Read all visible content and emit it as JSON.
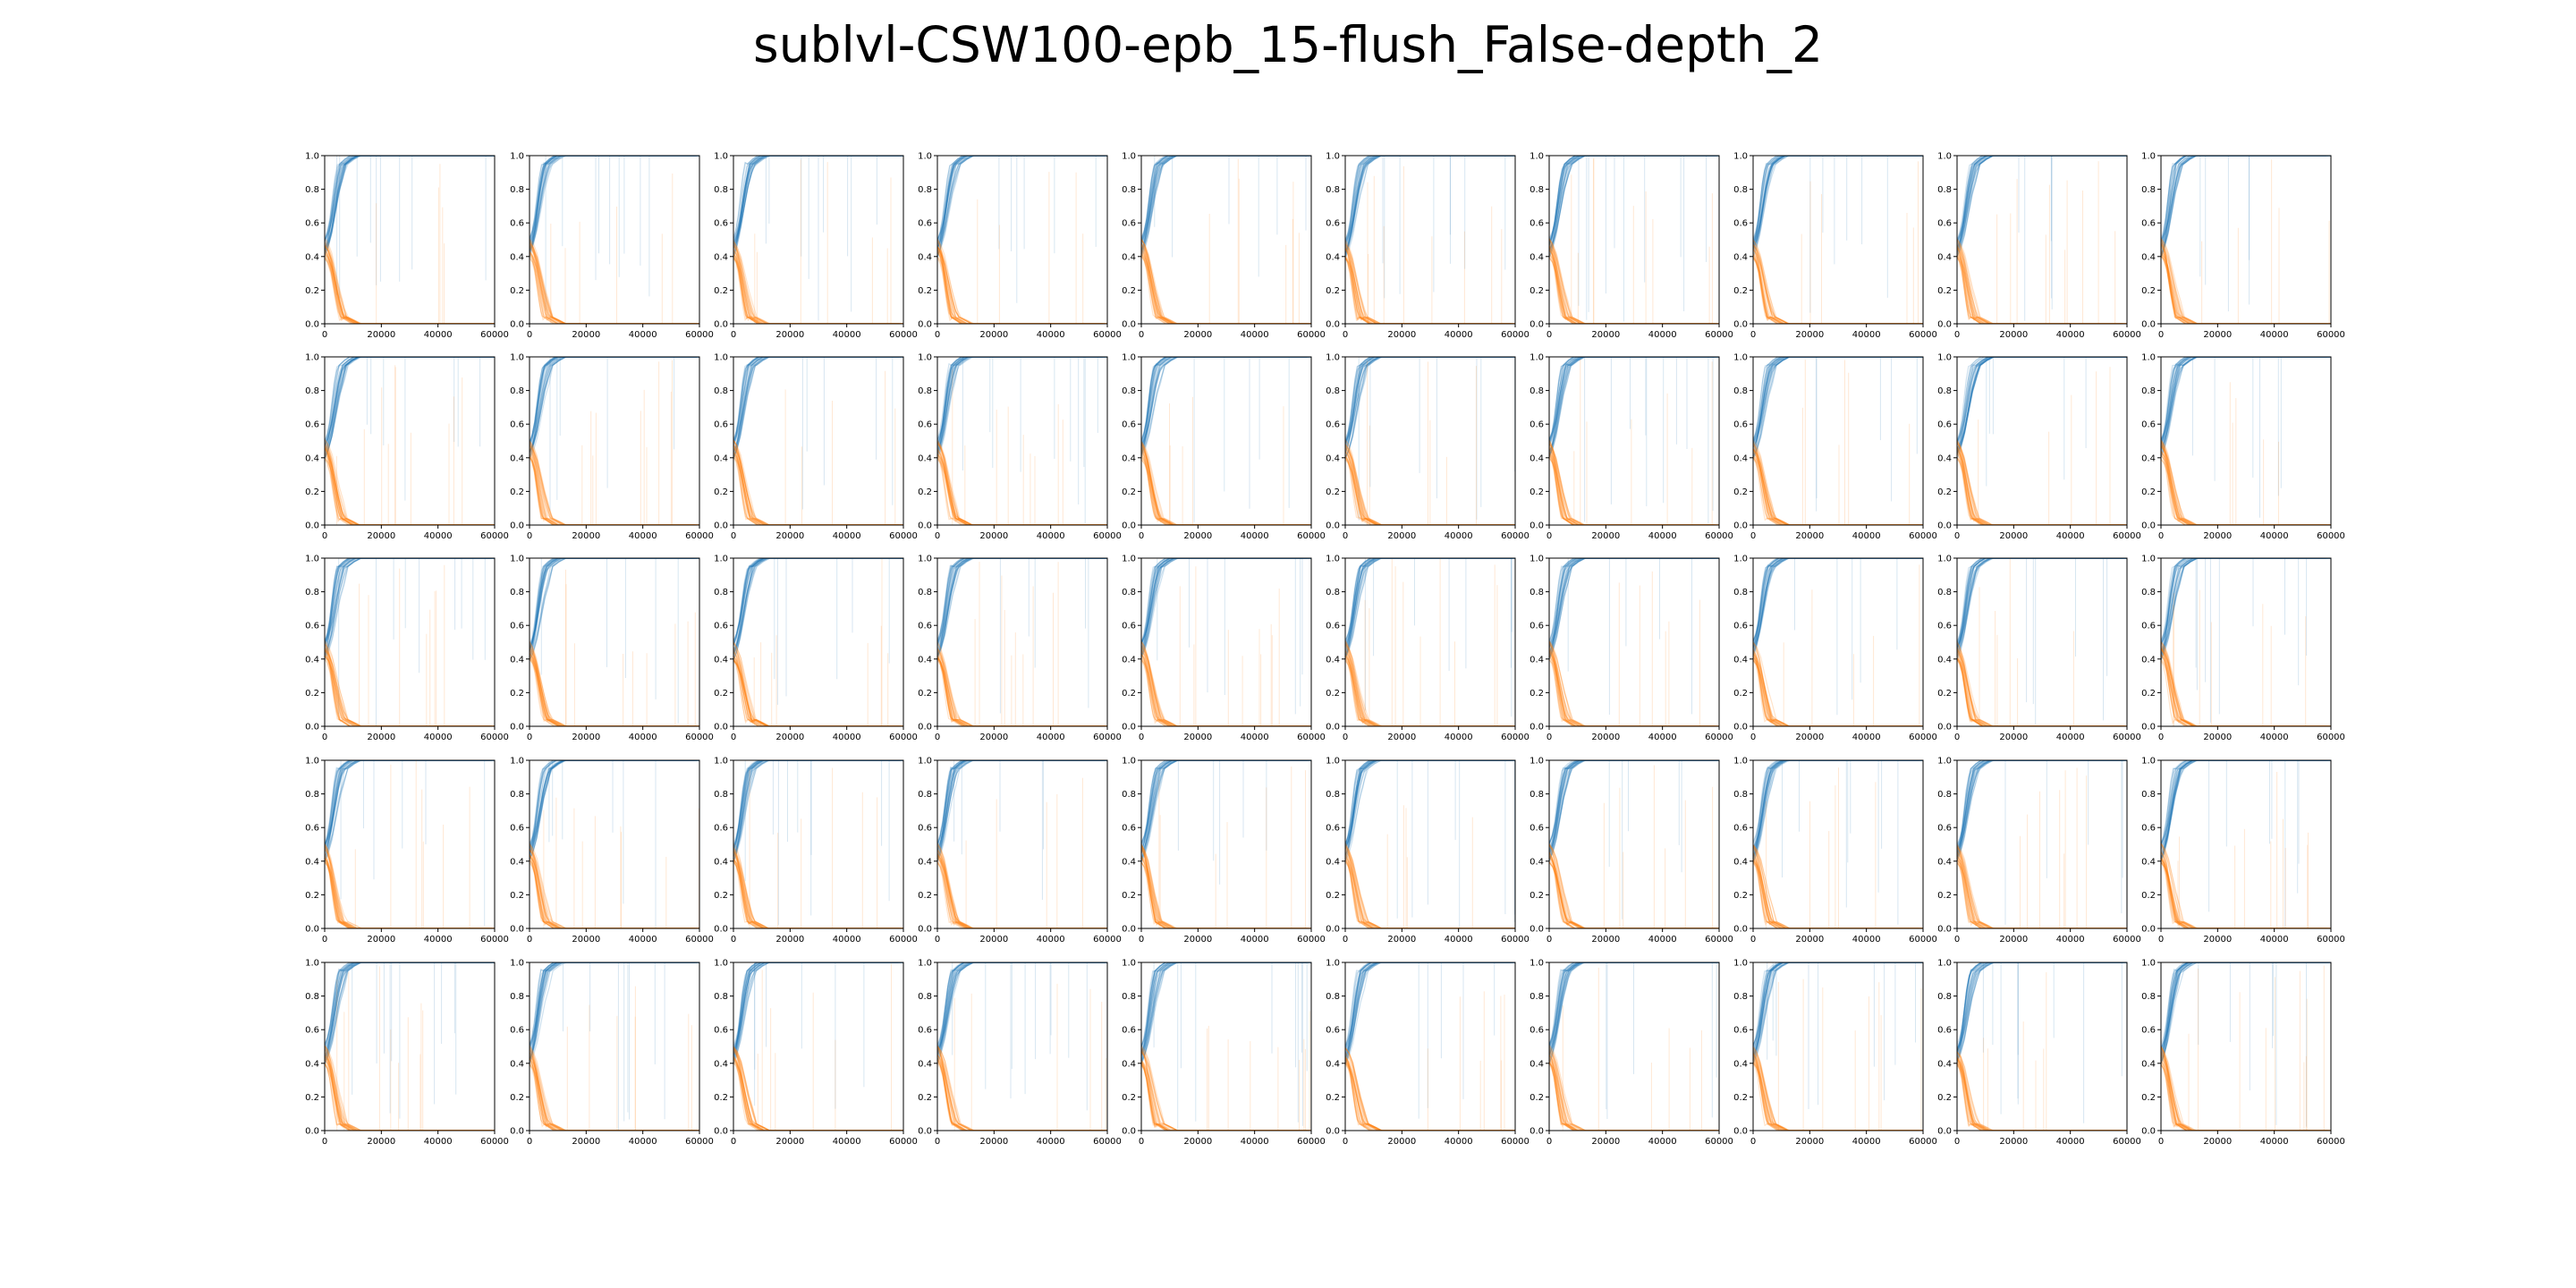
{
  "figure": {
    "title": "sublvl-CSW100-epb_15-flush_False-depth_2"
  },
  "chart_data": {
    "type": "line",
    "title": "sublvl-CSW100-epb_15-flush_False-depth_2",
    "layout": {
      "rows": 5,
      "cols": 10
    },
    "xlim": [
      0,
      60000
    ],
    "ylim": [
      0.0,
      1.0
    ],
    "x_ticks": [
      "0",
      "20000",
      "40000",
      "60000"
    ],
    "y_ticks": [
      "0.0",
      "0.2",
      "0.4",
      "0.6",
      "0.8",
      "1.0"
    ],
    "grid": false,
    "legend": "none",
    "series": [
      {
        "color": "#1f77b4",
        "x": [
          0,
          1000,
          2000,
          3000,
          4000,
          5000,
          6000,
          8000,
          10000,
          60000
        ],
        "values": [
          0.45,
          0.5,
          0.58,
          0.7,
          0.82,
          0.9,
          0.95,
          0.98,
          1.0,
          1.0
        ]
      },
      {
        "color": "#ff7f0e",
        "x": [
          0,
          1000,
          2000,
          3000,
          4000,
          5000,
          6000,
          8000,
          10000,
          60000
        ],
        "values": [
          0.45,
          0.42,
          0.36,
          0.26,
          0.16,
          0.08,
          0.04,
          0.02,
          0.0,
          0.0
        ]
      }
    ]
  }
}
